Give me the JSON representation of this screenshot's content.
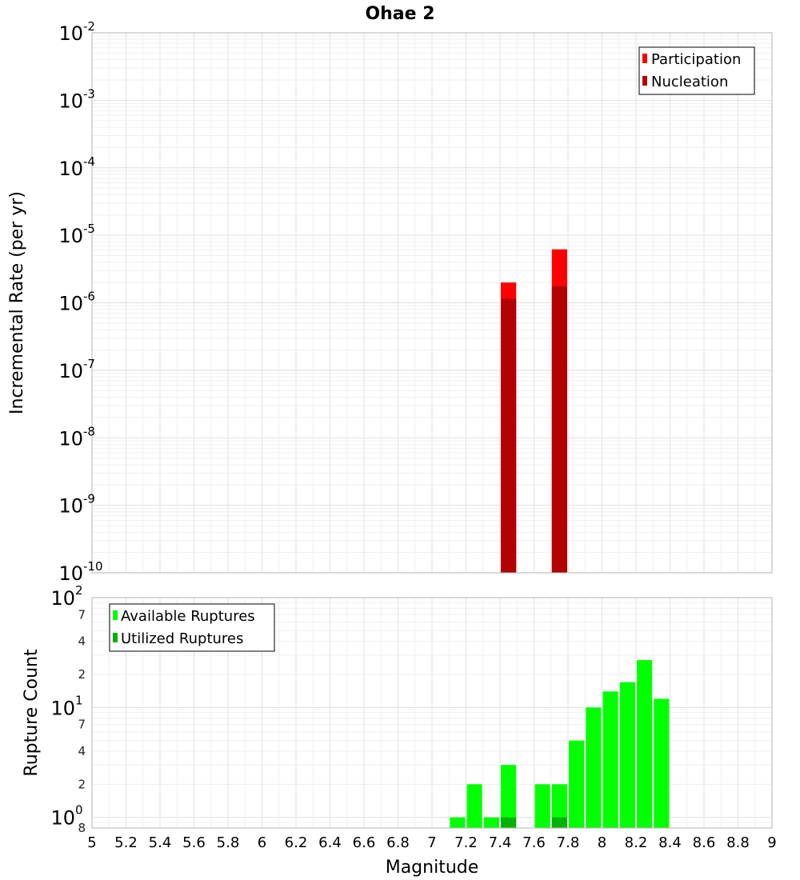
{
  "chart_data": [
    {
      "type": "bar",
      "title": "Ohae 2",
      "ylabel": "Incremental Rate (per yr)",
      "yscale": "log",
      "ylim": [
        1e-10,
        0.01
      ],
      "y_ticks": [
        {
          "base": "10",
          "exp": "-10",
          "value": 1e-10
        },
        {
          "base": "10",
          "exp": "-9",
          "value": 1e-09
        },
        {
          "base": "10",
          "exp": "-8",
          "value": 1e-08
        },
        {
          "base": "10",
          "exp": "-7",
          "value": 1e-07
        },
        {
          "base": "10",
          "exp": "-6",
          "value": 1e-06
        },
        {
          "base": "10",
          "exp": "-5",
          "value": 1e-05
        },
        {
          "base": "10",
          "exp": "-4",
          "value": 0.0001
        },
        {
          "base": "10",
          "exp": "-3",
          "value": 0.001
        },
        {
          "base": "10",
          "exp": "-2",
          "value": 0.01
        }
      ],
      "legend_position": "top-right",
      "grid": true,
      "series": [
        {
          "name": "Participation",
          "color": "#ff0000",
          "points": [
            {
              "x": 7.45,
              "y": 2e-06
            },
            {
              "x": 7.75,
              "y": 6.2e-06
            }
          ]
        },
        {
          "name": "Nucleation",
          "color": "#b30000",
          "points": [
            {
              "x": 7.45,
              "y": 1.15e-06
            },
            {
              "x": 7.75,
              "y": 1.75e-06
            }
          ]
        }
      ]
    },
    {
      "type": "bar",
      "xlabel": "Magnitude",
      "ylabel": "Rupture Count",
      "yscale": "log",
      "xlim": [
        5,
        9
      ],
      "ylim": [
        0.8,
        100
      ],
      "x_ticks": [
        "5",
        "5.2",
        "5.4",
        "5.6",
        "5.8",
        "6",
        "6.2",
        "6.4",
        "6.6",
        "6.8",
        "7",
        "7.2",
        "7.4",
        "7.6",
        "7.8",
        "8",
        "8.2",
        "8.4",
        "8.6",
        "8.8",
        "9"
      ],
      "y_major_ticks": [
        {
          "base": "10",
          "exp": "0",
          "value": 1
        },
        {
          "base": "10",
          "exp": "1",
          "value": 10
        },
        {
          "base": "10",
          "exp": "2",
          "value": 100
        }
      ],
      "y_minor_ticks": [
        {
          "label": "8",
          "value": 0.8
        },
        {
          "label": "2",
          "value": 2
        },
        {
          "label": "4",
          "value": 4
        },
        {
          "label": "7",
          "value": 7
        },
        {
          "label": "2",
          "value": 20
        },
        {
          "label": "4",
          "value": 40
        },
        {
          "label": "7",
          "value": 70
        }
      ],
      "legend_position": "top-left",
      "grid": true,
      "series": [
        {
          "name": "Available Ruptures",
          "color": "#00ff00",
          "points": [
            {
              "x": 7.15,
              "y": 1
            },
            {
              "x": 7.25,
              "y": 2
            },
            {
              "x": 7.35,
              "y": 1
            },
            {
              "x": 7.45,
              "y": 3
            },
            {
              "x": 7.65,
              "y": 2
            },
            {
              "x": 7.75,
              "y": 2
            },
            {
              "x": 7.85,
              "y": 5
            },
            {
              "x": 7.95,
              "y": 10
            },
            {
              "x": 8.05,
              "y": 14
            },
            {
              "x": 8.15,
              "y": 17
            },
            {
              "x": 8.25,
              "y": 27
            },
            {
              "x": 8.35,
              "y": 12
            }
          ]
        },
        {
          "name": "Utilized Ruptures",
          "color": "#00b300",
          "points": [
            {
              "x": 7.45,
              "y": 1
            },
            {
              "x": 7.75,
              "y": 1
            }
          ]
        }
      ]
    }
  ]
}
